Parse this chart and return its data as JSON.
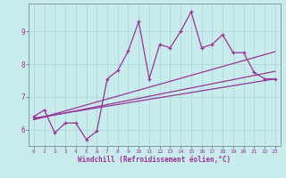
{
  "title": "",
  "xlabel": "Windchill (Refroidissement éolien,°C)",
  "ylabel": "",
  "bg_color": "#c8ecec",
  "line_color": "#993399",
  "grid_color": "#aacccc",
  "xlim": [
    -0.5,
    23.5
  ],
  "ylim": [
    5.5,
    9.85
  ],
  "xticks": [
    0,
    1,
    2,
    3,
    4,
    5,
    6,
    7,
    8,
    9,
    10,
    11,
    12,
    13,
    14,
    15,
    16,
    17,
    18,
    19,
    20,
    21,
    22,
    23
  ],
  "yticks": [
    6,
    7,
    8,
    9
  ],
  "scatter_x": [
    0,
    1,
    2,
    3,
    4,
    5,
    6,
    7,
    8,
    9,
    10,
    11,
    12,
    13,
    14,
    15,
    16,
    17,
    18,
    19,
    20,
    21,
    22,
    23
  ],
  "scatter_y": [
    6.4,
    6.6,
    5.9,
    6.2,
    6.2,
    5.7,
    5.95,
    7.55,
    7.8,
    8.4,
    9.3,
    7.55,
    8.6,
    8.5,
    9.0,
    9.6,
    8.5,
    8.6,
    8.9,
    8.35,
    8.35,
    7.75,
    7.55,
    7.55
  ],
  "line1_x": [
    0,
    23
  ],
  "line1_y": [
    6.35,
    7.55
  ],
  "line2_x": [
    0,
    23
  ],
  "line2_y": [
    6.32,
    7.78
  ],
  "line3_x": [
    0,
    23
  ],
  "line3_y": [
    6.3,
    8.38
  ]
}
